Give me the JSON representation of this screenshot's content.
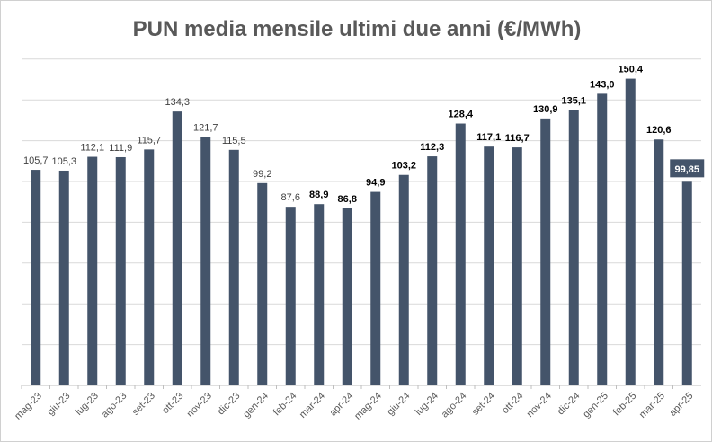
{
  "chart_data": {
    "type": "bar",
    "title": "PUN media mensile ultimi due anni (€/MWh)",
    "xlabel": "",
    "ylabel": "",
    "ylim": [
      0,
      170
    ],
    "grid": true,
    "legend": "none",
    "bar_color": "#44546a",
    "categories": [
      "mag-23",
      "giu-23",
      "lug-23",
      "ago-23",
      "set-23",
      "ott-23",
      "nov-23",
      "dic-23",
      "gen-24",
      "feb-24",
      "mar-24",
      "apr-24",
      "mag-24",
      "giu-24",
      "lug-24",
      "ago-24",
      "set-24",
      "ott-24",
      "nov-24",
      "dic-24",
      "gen-25",
      "feb-25",
      "mar-25",
      "apr-25"
    ],
    "values": [
      105.7,
      105.3,
      112.1,
      111.9,
      115.7,
      134.3,
      121.7,
      115.5,
      99.2,
      87.6,
      88.9,
      86.8,
      94.9,
      103.2,
      112.3,
      128.4,
      117.1,
      116.7,
      130.9,
      135.1,
      143.0,
      150.4,
      120.6,
      99.85
    ],
    "data_labels": [
      "105,7",
      "105,3",
      "112,1",
      "111,9",
      "115,7",
      "134,3",
      "121,7",
      "115,5",
      "99,2",
      "87,6",
      "88,9",
      "86,8",
      "94,9",
      "103,2",
      "112,3",
      "128,4",
      "117,1",
      "116,7",
      "130,9",
      "135,1",
      "143,0",
      "150,4",
      "120,6",
      "99,85"
    ],
    "bold_labels_from_index": 10,
    "highlight_label_index": 23
  }
}
